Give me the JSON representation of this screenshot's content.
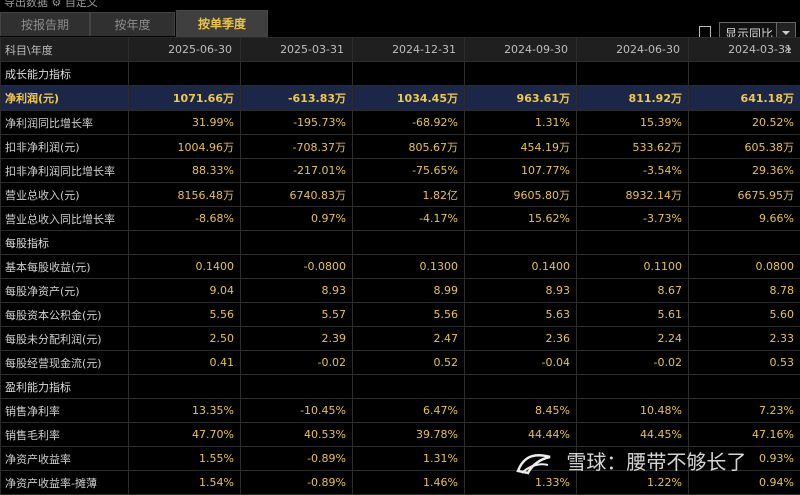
{
  "top": {
    "partial_text": "导出数据   ⚙ 自定义"
  },
  "tabs": [
    {
      "label": "按报告期",
      "active": false
    },
    {
      "label": "按年度",
      "active": false
    },
    {
      "label": "按单季度",
      "active": true
    }
  ],
  "compare": {
    "label": "显示同比",
    "checked": false
  },
  "table": {
    "header_label": "科目\\年度",
    "columns": [
      "2025-06-30",
      "2025-03-31",
      "2024-12-31",
      "2024-09-30",
      "2024-06-30",
      "2024-03-31"
    ],
    "more_icon": "»",
    "rows": [
      {
        "label": "成长能力指标",
        "section": true
      },
      {
        "label": "净利润(元)",
        "highlight": true,
        "values": [
          "1071.66万",
          "-613.83万",
          "1034.45万",
          "963.61万",
          "811.92万",
          "641.18万"
        ]
      },
      {
        "label": "净利润同比增长率",
        "values": [
          "31.99%",
          "-195.73%",
          "-68.92%",
          "1.31%",
          "15.39%",
          "20.52%"
        ]
      },
      {
        "label": "扣非净利润(元)",
        "values": [
          "1004.96万",
          "-708.37万",
          "805.67万",
          "454.19万",
          "533.62万",
          "605.38万"
        ]
      },
      {
        "label": "扣非净利润同比增长率",
        "values": [
          "88.33%",
          "-217.01%",
          "-75.65%",
          "107.77%",
          "-3.54%",
          "29.36%"
        ]
      },
      {
        "label": "营业总收入(元)",
        "values": [
          "8156.48万",
          "6740.83万",
          "1.82亿",
          "9605.80万",
          "8932.14万",
          "6675.95万"
        ]
      },
      {
        "label": "营业总收入同比增长率",
        "values": [
          "-8.68%",
          "0.97%",
          "-4.17%",
          "15.62%",
          "-3.73%",
          "9.66%"
        ]
      },
      {
        "label": "每股指标",
        "section": true
      },
      {
        "label": "基本每股收益(元)",
        "values": [
          "0.1400",
          "-0.0800",
          "0.1300",
          "0.1400",
          "0.1100",
          "0.0800"
        ]
      },
      {
        "label": "每股净资产(元)",
        "values": [
          "9.04",
          "8.93",
          "8.99",
          "8.93",
          "8.67",
          "8.78"
        ]
      },
      {
        "label": "每股资本公积金(元)",
        "values": [
          "5.56",
          "5.57",
          "5.56",
          "5.63",
          "5.61",
          "5.60"
        ]
      },
      {
        "label": "每股未分配利润(元)",
        "values": [
          "2.50",
          "2.39",
          "2.47",
          "2.36",
          "2.24",
          "2.33"
        ]
      },
      {
        "label": "每股经营现金流(元)",
        "values": [
          "0.41",
          "-0.02",
          "0.52",
          "-0.04",
          "-0.02",
          "0.53"
        ]
      },
      {
        "label": "盈利能力指标",
        "section": true
      },
      {
        "label": "销售净利率",
        "values": [
          "13.35%",
          "-10.45%",
          "6.47%",
          "8.45%",
          "10.48%",
          "7.23%"
        ]
      },
      {
        "label": "销售毛利率",
        "values": [
          "47.70%",
          "40.53%",
          "39.78%",
          "44.44%",
          "44.45%",
          "47.16%"
        ]
      },
      {
        "label": "净资产收益率",
        "values": [
          "1.55%",
          "-0.89%",
          "1.31%",
          "",
          "",
          "0.93%"
        ]
      },
      {
        "label": "净资产收益率-摊薄",
        "values": [
          "1.54%",
          "-0.89%",
          "1.46%",
          "1.33%",
          "1.22%",
          "0.94%"
        ]
      }
    ]
  },
  "watermark": {
    "text": "雪球：腰带不够长了"
  }
}
